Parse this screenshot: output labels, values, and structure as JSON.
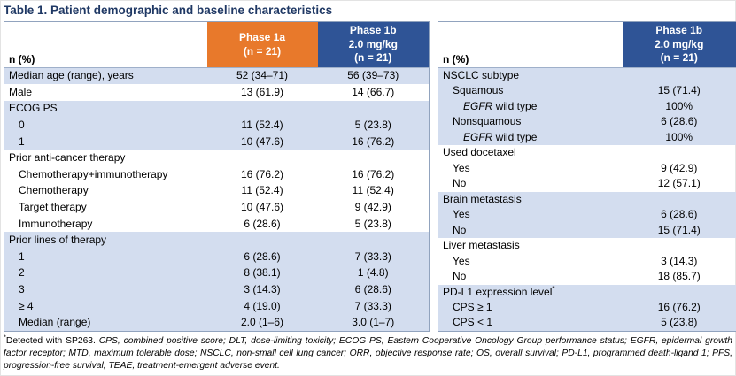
{
  "title": "Table 1. Patient demographic and baseline characteristics",
  "colors": {
    "title": "#1F3864",
    "orange": "#E8792B",
    "blue": "#2F5496",
    "shade": "#D3DDEF",
    "border": "#91A3BE"
  },
  "left_table": {
    "header": {
      "label": "n (%)",
      "phase1a": "Phase 1a\n(n = 21)",
      "phase1b": "Phase 1b\n2.0 mg/kg\n(n = 21)"
    },
    "rows": [
      {
        "label": "Median age (range), years",
        "indent": 0,
        "shade": true,
        "values": [
          "52 (34–71)",
          "56 (39–73)"
        ]
      },
      {
        "label": "Male",
        "indent": 0,
        "shade": false,
        "values": [
          "13 (61.9)",
          "14 (66.7)"
        ]
      },
      {
        "label": "ECOG PS",
        "indent": 0,
        "shade": true,
        "values": [
          "",
          ""
        ]
      },
      {
        "label": "0",
        "indent": 1,
        "shade": true,
        "values": [
          "11 (52.4)",
          "5 (23.8)"
        ]
      },
      {
        "label": "1",
        "indent": 1,
        "shade": true,
        "values": [
          "10 (47.6)",
          "16 (76.2)"
        ]
      },
      {
        "label": "Prior anti-cancer therapy",
        "indent": 0,
        "shade": false,
        "values": [
          "",
          ""
        ]
      },
      {
        "label": "Chemotherapy+immunotherapy",
        "indent": 1,
        "shade": false,
        "values": [
          "16 (76.2)",
          "16 (76.2)"
        ]
      },
      {
        "label": "Chemotherapy",
        "indent": 1,
        "shade": false,
        "values": [
          "11 (52.4)",
          "11 (52.4)"
        ]
      },
      {
        "label": "Target therapy",
        "indent": 1,
        "shade": false,
        "values": [
          "10 (47.6)",
          "9 (42.9)"
        ]
      },
      {
        "label": "Immunotherapy",
        "indent": 1,
        "shade": false,
        "values": [
          "6 (28.6)",
          "5 (23.8)"
        ]
      },
      {
        "label": "Prior lines of therapy",
        "indent": 0,
        "shade": true,
        "values": [
          "",
          ""
        ]
      },
      {
        "label": "1",
        "indent": 1,
        "shade": true,
        "values": [
          "6 (28.6)",
          "7 (33.3)"
        ]
      },
      {
        "label": "2",
        "indent": 1,
        "shade": true,
        "values": [
          "8 (38.1)",
          "1 (4.8)"
        ]
      },
      {
        "label": "3",
        "indent": 1,
        "shade": true,
        "values": [
          "3 (14.3)",
          "6 (28.6)"
        ]
      },
      {
        "label": "≥ 4",
        "indent": 1,
        "shade": true,
        "values": [
          "4 (19.0)",
          "7 (33.3)"
        ]
      },
      {
        "label": "Median (range)",
        "indent": 1,
        "shade": true,
        "values": [
          "2.0 (1–6)",
          "3.0 (1–7)"
        ]
      }
    ]
  },
  "right_table": {
    "header": {
      "label": "n (%)",
      "phase1b": "Phase 1b\n2.0 mg/kg\n(n = 21)"
    },
    "rows": [
      {
        "label": "NSCLC subtype",
        "indent": 0,
        "shade": true,
        "values": [
          ""
        ]
      },
      {
        "label": "Squamous",
        "indent": 1,
        "shade": true,
        "values": [
          "15 (71.4)"
        ]
      },
      {
        "label": "EGFR wild type",
        "em": "EGFR",
        "indent": 2,
        "shade": true,
        "values": [
          "100%"
        ]
      },
      {
        "label": "Nonsquamous",
        "indent": 1,
        "shade": true,
        "values": [
          "6 (28.6)"
        ]
      },
      {
        "label": "EGFR wild type",
        "em": "EGFR",
        "indent": 2,
        "shade": true,
        "values": [
          "100%"
        ]
      },
      {
        "label": "Used docetaxel",
        "indent": 0,
        "shade": false,
        "values": [
          ""
        ]
      },
      {
        "label": "Yes",
        "indent": 1,
        "shade": false,
        "values": [
          "9 (42.9)"
        ]
      },
      {
        "label": "No",
        "indent": 1,
        "shade": false,
        "values": [
          "12 (57.1)"
        ]
      },
      {
        "label": "Brain metastasis",
        "indent": 0,
        "shade": true,
        "values": [
          ""
        ]
      },
      {
        "label": "Yes",
        "indent": 1,
        "shade": true,
        "values": [
          "6 (28.6)"
        ]
      },
      {
        "label": "No",
        "indent": 1,
        "shade": true,
        "values": [
          "15 (71.4)"
        ]
      },
      {
        "label": "Liver metastasis",
        "indent": 0,
        "shade": false,
        "values": [
          ""
        ]
      },
      {
        "label": "Yes",
        "indent": 1,
        "shade": false,
        "values": [
          "3 (14.3)"
        ]
      },
      {
        "label": "No",
        "indent": 1,
        "shade": false,
        "values": [
          "18 (85.7)"
        ]
      },
      {
        "label": "PD-L1 expression level",
        "sup": "*",
        "indent": 0,
        "shade": true,
        "values": [
          ""
        ]
      },
      {
        "label": "CPS ≥ 1",
        "indent": 1,
        "shade": true,
        "values": [
          "16 (76.2)"
        ]
      },
      {
        "label": "CPS < 1",
        "indent": 1,
        "shade": true,
        "values": [
          "5 (23.8)"
        ]
      }
    ]
  },
  "footnote": {
    "marker": "*",
    "plain": "Detected with SP263. ",
    "abbreviations": "CPS, combined positive score; DLT, dose-limiting toxicity; ECOG PS, Eastern Cooperative Oncology Group performance status; EGFR, epidermal growth factor receptor; MTD, maximum tolerable dose; NSCLC, non-small cell lung cancer; ORR, objective response rate; OS, overall survival; PD-L1, programmed death-ligand 1; PFS, progression-free survival, TEAE, treatment-emergent adverse event."
  }
}
